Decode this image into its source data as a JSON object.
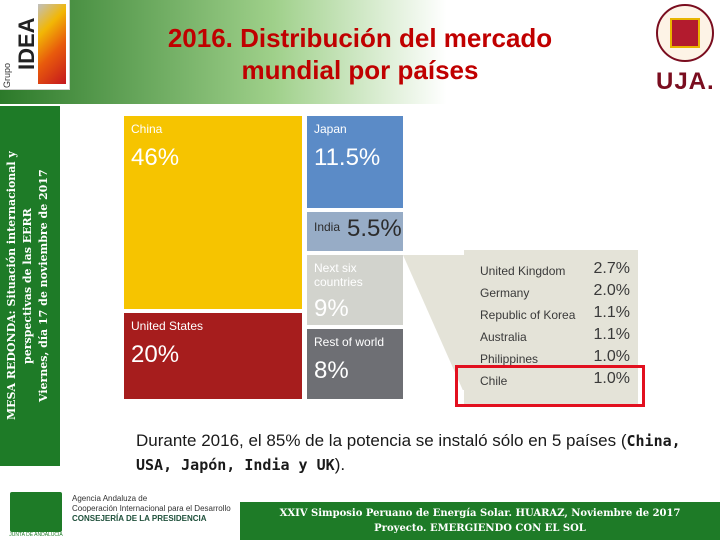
{
  "header": {
    "logo_left_vertical": "Grupo",
    "logo_left_name": "IDEA",
    "title_line1": "2016. Distribución del mercado",
    "title_line2": "mundial por países",
    "logo_right": "UJA."
  },
  "side_band": {
    "line1": "MESA REDONDA: Situación internacional y",
    "line2": "perspectivas de las EERR",
    "line3": "Viernes, día 17 de noviembre de 2017"
  },
  "chart_data": {
    "type": "treemap",
    "tiles": [
      {
        "name": "China",
        "pct": "46%",
        "value": 46,
        "color": "#f6c400"
      },
      {
        "name": "Japan",
        "pct": "11.5%",
        "value": 11.5,
        "color": "#5b8bc7"
      },
      {
        "name": "India",
        "pct": "5.5%",
        "value": 5.5,
        "color": "#97acc6"
      },
      {
        "name": "Next six countries",
        "pct": "9%",
        "value": 9,
        "color": "#d2d3cd"
      },
      {
        "name": "United States",
        "pct": "20%",
        "value": 20,
        "color": "#a61d1d"
      },
      {
        "name": "Rest of world",
        "pct": "8%",
        "value": 8,
        "color": "#6e6f74"
      }
    ],
    "breakdown": [
      {
        "name": "United Kingdom",
        "pct": "2.7%",
        "value": 2.7
      },
      {
        "name": "Germany",
        "pct": "2.0%",
        "value": 2.0
      },
      {
        "name": "Republic of Korea",
        "pct": "1.1%",
        "value": 1.1
      },
      {
        "name": "Australia",
        "pct": "1.1%",
        "value": 1.1
      },
      {
        "name": "Philippines",
        "pct": "1.0%",
        "value": 1.0
      },
      {
        "name": "Chile",
        "pct": "1.0%",
        "value": 1.0
      }
    ],
    "highlighted": "Chile",
    "highlight_color": "#e2101f"
  },
  "caption": {
    "text1": "Durante 2016, el 85% de la potencia se instaló sólo en 5 países (",
    "bold": "China, USA, Japón, India y UK",
    "text2": ")."
  },
  "footer": {
    "junta_label": "JUNTA DE ANDALUCIA",
    "agency_line1": "Agencia Andaluza de",
    "agency_line2": "Cooperación Internacional para el Desarrollo",
    "agency_line3": "CONSEJERÍA DE LA PRESIDENCIA",
    "band_line1": "XXIV Simposio Peruano de Energía Solar. HUARAZ, Noviembre de 2017",
    "band_line2": "Proyecto. EMERGIENDO CON EL SOL"
  }
}
